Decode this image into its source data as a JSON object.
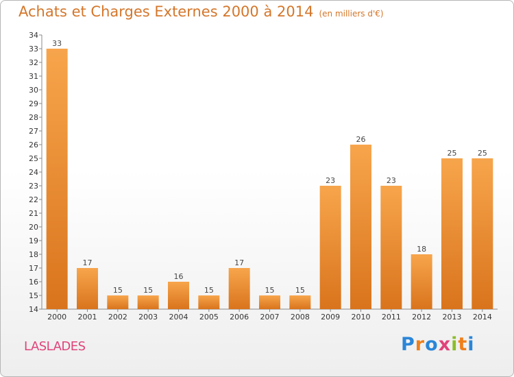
{
  "header": {
    "title": "Achats et Charges Externes 2000 à 2014",
    "unit": "(en milliers d'€)"
  },
  "footer": {
    "town": "LASLADES",
    "logo_letters": [
      "P",
      "r",
      "o",
      "x",
      "i",
      "t",
      "i"
    ]
  },
  "colors": {
    "bar_light": "#f7a54c",
    "bar_dark": "#d9741c",
    "title": "#d4762a",
    "town": "#e0427a"
  },
  "chart_data": {
    "type": "bar",
    "categories": [
      "2000",
      "2001",
      "2002",
      "2003",
      "2004",
      "2005",
      "2006",
      "2007",
      "2008",
      "2009",
      "2010",
      "2011",
      "2012",
      "2013",
      "2014"
    ],
    "values": [
      33,
      17,
      15,
      15,
      16,
      15,
      17,
      15,
      15,
      23,
      26,
      23,
      18,
      25,
      25
    ],
    "title": "Achats et Charges Externes 2000 à 2014",
    "xlabel": "",
    "ylabel": "",
    "ylim": [
      14,
      34
    ],
    "yticks": [
      14,
      15,
      16,
      17,
      18,
      19,
      20,
      21,
      22,
      23,
      24,
      25,
      26,
      27,
      28,
      29,
      30,
      31,
      32,
      33,
      34
    ],
    "grid": false,
    "data_labels": true
  }
}
